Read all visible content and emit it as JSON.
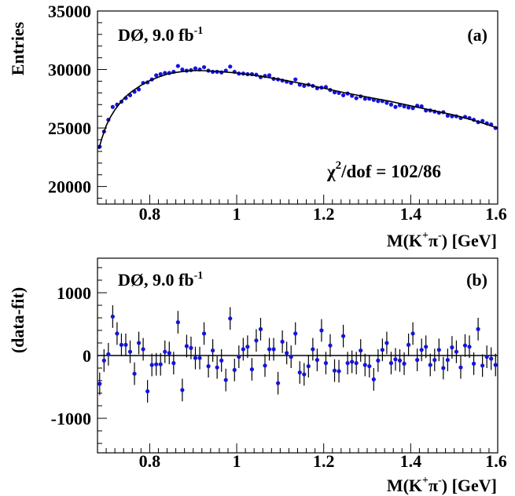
{
  "chart_data": [
    {
      "type": "scatter",
      "panel_label": "(a)",
      "experiment": "DØ, 9.0 fb",
      "experiment_sup": "-1",
      "ylabel": "Entries",
      "xlabel_main": "M(K",
      "xlabel_sup1": "+",
      "xlabel_pi": "π",
      "xlabel_sup2": "-",
      "xlabel_unit": ") [GeV]",
      "chi_symbol": "χ",
      "chi_sup": "2",
      "chi_text": "/dof = 102/86",
      "xlim": [
        0.68,
        1.6
      ],
      "ylim": [
        18500,
        35000
      ],
      "xticks": [
        {
          "v": 0.8,
          "label": "0.8"
        },
        {
          "v": 1.0,
          "label": "1"
        },
        {
          "v": 1.2,
          "label": "1.2"
        },
        {
          "v": 1.4,
          "label": "1.4"
        },
        {
          "v": 1.6,
          "label": "1.6"
        }
      ],
      "yticks": [
        {
          "v": 20000,
          "label": "20000"
        },
        {
          "v": 25000,
          "label": "25000"
        },
        {
          "v": 30000,
          "label": "30000"
        },
        {
          "v": 35000,
          "label": "35000"
        }
      ],
      "series": [
        {
          "kind": "points",
          "x": [
            0.685,
            0.695,
            0.705,
            0.715,
            0.725,
            0.735,
            0.745,
            0.755,
            0.765,
            0.775,
            0.785,
            0.795,
            0.805,
            0.815,
            0.825,
            0.835,
            0.845,
            0.855,
            0.865,
            0.875,
            0.885,
            0.895,
            0.905,
            0.915,
            0.925,
            0.935,
            0.945,
            0.955,
            0.965,
            0.975,
            0.985,
            0.995,
            1.005,
            1.015,
            1.025,
            1.035,
            1.045,
            1.055,
            1.065,
            1.075,
            1.085,
            1.095,
            1.105,
            1.115,
            1.125,
            1.135,
            1.145,
            1.155,
            1.165,
            1.175,
            1.185,
            1.195,
            1.205,
            1.215,
            1.225,
            1.235,
            1.245,
            1.255,
            1.265,
            1.275,
            1.285,
            1.295,
            1.305,
            1.315,
            1.325,
            1.335,
            1.345,
            1.355,
            1.365,
            1.375,
            1.385,
            1.395,
            1.405,
            1.415,
            1.425,
            1.435,
            1.445,
            1.455,
            1.465,
            1.475,
            1.485,
            1.495,
            1.505,
            1.515,
            1.525,
            1.535,
            1.545,
            1.555,
            1.565,
            1.575,
            1.585,
            1.595
          ],
          "y": [
            23400,
            24700,
            25700,
            26800,
            27000,
            27250,
            27550,
            27800,
            28100,
            28300,
            28850,
            28900,
            29150,
            29500,
            29600,
            29700,
            29700,
            29800,
            30300,
            30000,
            29900,
            29950,
            30100,
            30000,
            30200,
            29900,
            29800,
            29800,
            29750,
            29900,
            30250,
            29800,
            29650,
            29650,
            29600,
            29600,
            29550,
            29350,
            29450,
            29500,
            29200,
            29150,
            29050,
            28950,
            28850,
            29150,
            28700,
            28600,
            28700,
            28600,
            28400,
            28450,
            28500,
            28250,
            28050,
            28000,
            27800,
            27950,
            27750,
            27550,
            27700,
            27500,
            27500,
            27400,
            27300,
            27300,
            27150,
            27000,
            26800,
            26950,
            26850,
            26750,
            26700,
            26900,
            26850,
            26500,
            26500,
            26400,
            26300,
            26350,
            26050,
            26000,
            26000,
            25850,
            25950,
            25850,
            25700,
            25500,
            25600,
            25400,
            25300,
            25000
          ]
        },
        {
          "kind": "fit",
          "x": [
            0.683,
            0.69,
            0.7,
            0.71,
            0.72,
            0.73,
            0.74,
            0.75,
            0.76,
            0.77,
            0.78,
            0.8,
            0.82,
            0.84,
            0.86,
            0.88,
            0.9,
            0.92,
            0.94,
            0.96,
            0.98,
            1.0,
            1.05,
            1.1,
            1.15,
            1.2,
            1.25,
            1.3,
            1.35,
            1.4,
            1.45,
            1.5,
            1.55,
            1.6
          ],
          "y": [
            23200,
            24100,
            25200,
            25950,
            26550,
            27050,
            27500,
            27850,
            28150,
            28400,
            28650,
            29050,
            29350,
            29600,
            29750,
            29850,
            29900,
            29900,
            29870,
            29820,
            29760,
            29700,
            29450,
            29150,
            28800,
            28400,
            28000,
            27650,
            27300,
            26900,
            26500,
            26100,
            25600,
            25000
          ]
        }
      ]
    },
    {
      "type": "scatter",
      "panel_label": "(b)",
      "experiment": "DØ, 9.0 fb",
      "experiment_sup": "-1",
      "ylabel": "(data-fit)",
      "xlabel_main": "M(K",
      "xlabel_sup1": "+",
      "xlabel_pi": "π",
      "xlabel_sup2": "-",
      "xlabel_unit": ") [GeV]",
      "xlim": [
        0.68,
        1.6
      ],
      "ylim": [
        -1550,
        1550
      ],
      "xticks": [
        {
          "v": 0.8,
          "label": "0.8"
        },
        {
          "v": 1.0,
          "label": "1"
        },
        {
          "v": 1.2,
          "label": "1.2"
        },
        {
          "v": 1.4,
          "label": "1.4"
        },
        {
          "v": 1.6,
          "label": "1.6"
        }
      ],
      "yticks": [
        {
          "v": -1000,
          "label": "-1000"
        },
        {
          "v": 0,
          "label": "0"
        },
        {
          "v": 1000,
          "label": "1000"
        }
      ],
      "error": 180,
      "series": [
        {
          "kind": "residuals",
          "x": [
            0.685,
            0.695,
            0.705,
            0.715,
            0.725,
            0.735,
            0.745,
            0.755,
            0.765,
            0.775,
            0.785,
            0.795,
            0.805,
            0.815,
            0.825,
            0.835,
            0.845,
            0.855,
            0.865,
            0.875,
            0.885,
            0.895,
            0.905,
            0.915,
            0.925,
            0.935,
            0.945,
            0.955,
            0.965,
            0.975,
            0.985,
            0.995,
            1.005,
            1.015,
            1.025,
            1.035,
            1.045,
            1.055,
            1.065,
            1.075,
            1.085,
            1.095,
            1.105,
            1.115,
            1.125,
            1.135,
            1.145,
            1.155,
            1.165,
            1.175,
            1.185,
            1.195,
            1.205,
            1.215,
            1.225,
            1.235,
            1.245,
            1.255,
            1.265,
            1.275,
            1.285,
            1.295,
            1.305,
            1.315,
            1.325,
            1.335,
            1.345,
            1.355,
            1.365,
            1.375,
            1.385,
            1.395,
            1.405,
            1.415,
            1.425,
            1.435,
            1.445,
            1.455,
            1.465,
            1.475,
            1.485,
            1.495,
            1.505,
            1.515,
            1.525,
            1.535,
            1.545,
            1.555,
            1.565,
            1.575,
            1.585,
            1.595
          ],
          "y": [
            -450,
            -80,
            20,
            620,
            350,
            170,
            170,
            60,
            -290,
            200,
            100,
            -570,
            -150,
            -140,
            -140,
            60,
            40,
            -120,
            530,
            -550,
            150,
            120,
            -40,
            -40,
            350,
            -170,
            80,
            -190,
            -80,
            -390,
            590,
            -230,
            -20,
            100,
            140,
            -220,
            240,
            420,
            -160,
            100,
            100,
            -440,
            220,
            40,
            -20,
            350,
            -270,
            -300,
            -170,
            100,
            -70,
            400,
            -120,
            160,
            -240,
            -250,
            310,
            -120,
            -100,
            -120,
            80,
            -150,
            -170,
            -380,
            -80,
            90,
            200,
            -120,
            -60,
            -80,
            -130,
            170,
            350,
            -70,
            90,
            140,
            -150,
            -70,
            90,
            -200,
            -70,
            130,
            60,
            -190,
            160,
            140,
            -130,
            420,
            -160,
            -20,
            -50,
            -150
          ]
        }
      ]
    }
  ]
}
